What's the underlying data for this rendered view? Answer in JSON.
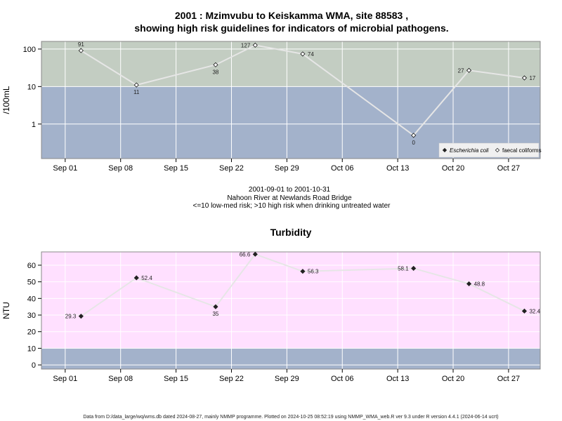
{
  "colors": {
    "high_risk_band": "#c3cdc2",
    "low_risk_band": "#a3b2cb",
    "turbidity_high_band": "#ffe0ff",
    "turbidity_low_band": "#a3b2cb",
    "grid": "#ffffff",
    "line": "#e6e6e6",
    "frame": "#888888"
  },
  "footer": "Data from D:/data_large/wq/wms.db dated 2024-08-27, mainly NMMP programme. Plotted on 2024-10-25 08:52:19 using NMMP_WMA_web.R ver 9.3 under R version 4.4.1 (2024-06-14 ucrt)",
  "chart_data": [
    {
      "type": "line",
      "title": [
        "2001 : Mzimvubu to Keiskamma WMA, site 88583 ,",
        "showing high risk guidelines for indicators of microbial pathogens."
      ],
      "subtitle": [
        "2001-09-01 to 2001-10-31",
        "Nahoon River at Newlands Road Bridge",
        "<=10 low-med risk; >10 high risk when drinking untreated water"
      ],
      "xlabel": "",
      "ylabel": "/100mL",
      "yscale": "log",
      "xlim": [
        "2001-08-29",
        "2001-10-31"
      ],
      "ylim": [
        0.12,
        160
      ],
      "x_ticks": [
        "2001-09-01",
        "2001-09-08",
        "2001-09-15",
        "2001-09-22",
        "2001-09-29",
        "2001-10-06",
        "2001-10-13",
        "2001-10-20",
        "2001-10-27"
      ],
      "x_tick_labels": [
        "Sep 01",
        "Sep 08",
        "Sep 15",
        "Sep 22",
        "Sep 29",
        "Oct 06",
        "Oct 13",
        "Oct 20",
        "Oct 27"
      ],
      "y_ticks": [
        1,
        10,
        100
      ],
      "y_tick_labels": [
        "1",
        "10",
        "100"
      ],
      "threshold": 10,
      "grid": true,
      "legend_position": "bottom-right",
      "legend": [
        {
          "label": "Escherichia coli",
          "marker": "filled-diamond",
          "italic": true
        },
        {
          "label": "faecal coliforms",
          "marker": "open-diamond",
          "italic": false
        }
      ],
      "series": [
        {
          "name": "faecal coliforms",
          "marker": "open-diamond",
          "points": [
            {
              "x": "2001-09-03",
              "y": 91,
              "label": "91",
              "label_pos": "above"
            },
            {
              "x": "2001-09-10",
              "y": 11,
              "label": "11",
              "label_pos": "below"
            },
            {
              "x": "2001-09-20",
              "y": 38,
              "label": "38",
              "label_pos": "below"
            },
            {
              "x": "2001-09-25",
              "y": 127,
              "label": "127",
              "label_pos": "left"
            },
            {
              "x": "2001-10-01",
              "y": 74,
              "label": "74",
              "label_pos": "right"
            },
            {
              "x": "2001-10-15",
              "y": 0.5,
              "label": "0",
              "label_pos": "below"
            },
            {
              "x": "2001-10-22",
              "y": 27,
              "label": "27",
              "label_pos": "left"
            },
            {
              "x": "2001-10-29",
              "y": 17,
              "label": "17",
              "label_pos": "right"
            }
          ]
        }
      ]
    },
    {
      "type": "line",
      "title": [
        "Turbidity"
      ],
      "xlabel": "",
      "ylabel": "NTU",
      "yscale": "linear",
      "xlim": [
        "2001-08-29",
        "2001-10-31"
      ],
      "ylim": [
        -2.5,
        68
      ],
      "x_ticks": [
        "2001-09-01",
        "2001-09-08",
        "2001-09-15",
        "2001-09-22",
        "2001-09-29",
        "2001-10-06",
        "2001-10-13",
        "2001-10-20",
        "2001-10-27"
      ],
      "x_tick_labels": [
        "Sep 01",
        "Sep 08",
        "Sep 15",
        "Sep 22",
        "Sep 29",
        "Oct 06",
        "Oct 13",
        "Oct 20",
        "Oct 27"
      ],
      "y_ticks": [
        0,
        10,
        20,
        30,
        40,
        50,
        60
      ],
      "y_tick_labels": [
        "0",
        "10",
        "20",
        "30",
        "40",
        "50",
        "60"
      ],
      "threshold": 10,
      "grid": true,
      "series": [
        {
          "name": "",
          "marker": "filled-diamond",
          "points": [
            {
              "x": "2001-09-03",
              "y": 29.3,
              "label": "29.3",
              "label_pos": "left"
            },
            {
              "x": "2001-09-10",
              "y": 52.4,
              "label": "52.4",
              "label_pos": "right"
            },
            {
              "x": "2001-09-20",
              "y": 35,
              "label": "35",
              "label_pos": "below"
            },
            {
              "x": "2001-09-25",
              "y": 66.6,
              "label": "66.6",
              "label_pos": "left"
            },
            {
              "x": "2001-10-01",
              "y": 56.3,
              "label": "56.3",
              "label_pos": "right"
            },
            {
              "x": "2001-10-15",
              "y": 58.1,
              "label": "58.1",
              "label_pos": "left"
            },
            {
              "x": "2001-10-22",
              "y": 48.8,
              "label": "48.8",
              "label_pos": "right"
            },
            {
              "x": "2001-10-29",
              "y": 32.4,
              "label": "32.4",
              "label_pos": "right"
            }
          ]
        }
      ]
    }
  ]
}
